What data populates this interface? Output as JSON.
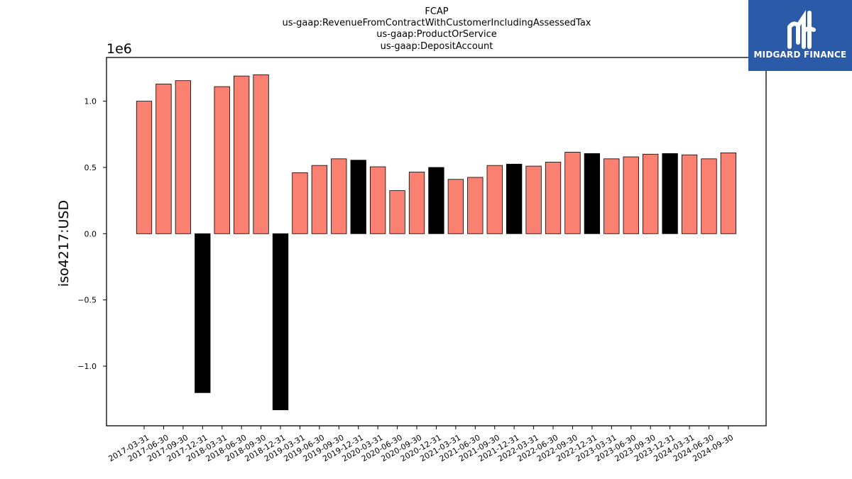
{
  "logo": {
    "text": "MIDGARD FINANCE",
    "background": "#2a5aa8"
  },
  "chart_data": {
    "type": "bar",
    "title_lines": [
      "FCAP",
      "us-gaap:RevenueFromContractWithCustomerIncludingAssessedTax",
      "us-gaap:ProductOrService",
      "us-gaap:DepositAccount"
    ],
    "ylabel": "iso4217:USD",
    "offset_text": "1e6",
    "ylim": [
      -1.45,
      1.33
    ],
    "yticks": [
      1.0,
      0.5,
      0.0,
      -0.5,
      -1.0
    ],
    "ytick_labels": [
      "1.0",
      "0.5",
      "0.0",
      "−0.5",
      "−1.0"
    ],
    "grid": false,
    "colors": {
      "annual": "#000000",
      "quarterly": "#fa8072"
    },
    "categories": [
      "2017-03-31",
      "2017-06-30",
      "2017-09-30",
      "2017-12-31",
      "2018-03-31",
      "2018-06-30",
      "2018-09-30",
      "2018-12-31",
      "2019-03-31",
      "2019-06-30",
      "2019-09-30",
      "2019-12-31",
      "2020-03-31",
      "2020-06-30",
      "2020-09-30",
      "2020-12-31",
      "2021-03-31",
      "2021-06-30",
      "2021-09-30",
      "2021-12-31",
      "2022-03-31",
      "2022-06-30",
      "2022-09-30",
      "2022-12-31",
      "2023-03-31",
      "2023-06-30",
      "2023-09-30",
      "2023-12-31",
      "2024-03-31",
      "2024-06-30",
      "2024-09-30"
    ],
    "values": [
      1.0,
      1.13,
      1.155,
      -1.2,
      1.11,
      1.19,
      1.2,
      -1.33,
      0.46,
      0.515,
      0.565,
      0.555,
      0.505,
      0.325,
      0.465,
      0.5,
      0.41,
      0.425,
      0.515,
      0.525,
      0.51,
      0.54,
      0.615,
      0.605,
      0.565,
      0.58,
      0.6,
      0.605,
      0.595,
      0.565,
      0.61
    ],
    "bar_colors": [
      "#fa8072",
      "#fa8072",
      "#fa8072",
      "#000000",
      "#fa8072",
      "#fa8072",
      "#fa8072",
      "#000000",
      "#fa8072",
      "#fa8072",
      "#fa8072",
      "#000000",
      "#fa8072",
      "#fa8072",
      "#fa8072",
      "#000000",
      "#fa8072",
      "#fa8072",
      "#fa8072",
      "#000000",
      "#fa8072",
      "#fa8072",
      "#fa8072",
      "#000000",
      "#fa8072",
      "#fa8072",
      "#fa8072",
      "#000000",
      "#fa8072",
      "#fa8072",
      "#fa8072"
    ]
  }
}
